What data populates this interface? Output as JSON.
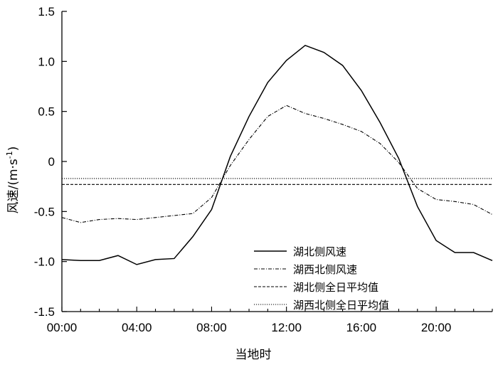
{
  "chart_data": {
    "type": "line",
    "xlabel": "当地时",
    "ylabel": "风速/(m·s",
    "ylabel_sup": "-1",
    "ylabel_close": ")",
    "xlim": [
      0,
      23
    ],
    "ylim": [
      -1.5,
      1.5
    ],
    "xticks": [
      {
        "value": 0,
        "label": "00:00"
      },
      {
        "value": 4,
        "label": "04:00"
      },
      {
        "value": 8,
        "label": "08:00"
      },
      {
        "value": 12,
        "label": "12:00"
      },
      {
        "value": 16,
        "label": "16:00"
      },
      {
        "value": 20,
        "label": "20:00"
      }
    ],
    "yticks": [
      {
        "value": 1.5,
        "label": "1.5"
      },
      {
        "value": 1.0,
        "label": "1.0"
      },
      {
        "value": 0.5,
        "label": "0.5"
      },
      {
        "value": 0,
        "label": "0"
      },
      {
        "value": -0.5,
        "label": "-0.5"
      },
      {
        "value": -1.0,
        "label": "-1.0"
      },
      {
        "value": -1.5,
        "label": "-1.5"
      }
    ],
    "grid": false,
    "legend_position": "bottom-right",
    "x": [
      0,
      1,
      2,
      3,
      4,
      5,
      6,
      7,
      8,
      9,
      10,
      11,
      12,
      13,
      14,
      15,
      16,
      17,
      18,
      19,
      20,
      21,
      22,
      23
    ],
    "series": [
      {
        "name": "湖北侧风速",
        "style": "solid",
        "values": [
          -0.98,
          -0.99,
          -0.99,
          -0.94,
          -1.03,
          -0.98,
          -0.97,
          -0.75,
          -0.48,
          0.05,
          0.45,
          0.79,
          1.01,
          1.16,
          1.09,
          0.96,
          0.71,
          0.39,
          0.03,
          -0.45,
          -0.79,
          -0.91,
          -0.91,
          -0.99
        ]
      },
      {
        "name": "湖西北侧风速",
        "style": "dashdot",
        "values": [
          -0.56,
          -0.61,
          -0.58,
          -0.57,
          -0.58,
          -0.56,
          -0.54,
          -0.52,
          -0.36,
          -0.04,
          0.22,
          0.45,
          0.56,
          0.48,
          0.43,
          0.37,
          0.3,
          0.18,
          -0.01,
          -0.27,
          -0.38,
          -0.4,
          -0.43,
          -0.53
        ]
      },
      {
        "name": "湖北侧全日平均值",
        "style": "dashed",
        "constant": -0.23
      },
      {
        "name": "湖西北侧全日平均值",
        "style": "dotted",
        "constant": -0.17
      }
    ]
  }
}
